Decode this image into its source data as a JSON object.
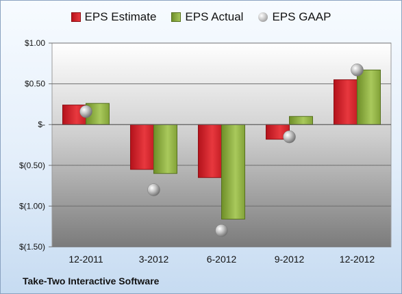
{
  "chart_data": {
    "type": "bar",
    "categories": [
      "12-2011",
      "3-2012",
      "6-2012",
      "9-2012",
      "12-2012"
    ],
    "series": [
      {
        "name": "EPS Estimate",
        "kind": "bar",
        "color": "#d2252b",
        "values": [
          0.24,
          -0.55,
          -0.65,
          -0.18,
          0.55
        ]
      },
      {
        "name": "EPS Actual",
        "kind": "bar",
        "color": "#8fb04a",
        "values": [
          0.26,
          -0.6,
          -1.16,
          0.1,
          0.67
        ]
      },
      {
        "name": "EPS GAAP",
        "kind": "marker",
        "color": "#a8a8a8",
        "values": [
          0.16,
          -0.8,
          -1.3,
          -0.15,
          0.67
        ]
      }
    ],
    "ylim": [
      -1.5,
      1.0
    ],
    "yticks": [
      1.0,
      0.5,
      0,
      -0.5,
      -1.0,
      -1.5
    ],
    "ytick_labels": [
      "$1.00",
      "$0.50",
      "$-",
      "$(0.50)",
      "$(1.00)",
      "$(1.50)"
    ],
    "grid": true,
    "legend_position": "top",
    "title": "",
    "xlabel": "",
    "ylabel": ""
  },
  "legend": {
    "estimate": "EPS Estimate",
    "actual": "EPS Actual",
    "gaap": "EPS GAAP"
  },
  "footer": {
    "company": "Take-Two Interactive Software"
  }
}
